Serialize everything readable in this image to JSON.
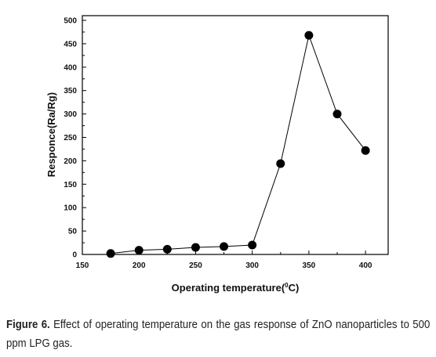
{
  "chart_data": {
    "type": "line",
    "xlabel": "Operating temperature(",
    "xlabel_sup": "0",
    "xlabel_end": "C)",
    "ylabel": "Responce(Ra/Rg)",
    "xlim": [
      150,
      420
    ],
    "ylim": [
      0,
      510
    ],
    "x_ticks": [
      "150",
      "200",
      "250",
      "300",
      "350",
      "400"
    ],
    "y_ticks": [
      "0",
      "50",
      "100",
      "150",
      "200",
      "250",
      "300",
      "350",
      "400",
      "450",
      "500"
    ],
    "grid": false,
    "marker": "circle",
    "line_color": "#000000",
    "series": [
      {
        "x": [
          175,
          200,
          225,
          250,
          275,
          300,
          325,
          350,
          375,
          400
        ],
        "values": [
          2,
          9,
          11,
          15,
          17,
          20,
          194,
          468,
          300,
          222
        ]
      }
    ]
  },
  "caption": {
    "label": "Figure 6.",
    "text": " Effect of operating temperature on the gas response of ZnO nanoparticles to 500 ppm LPG gas."
  }
}
